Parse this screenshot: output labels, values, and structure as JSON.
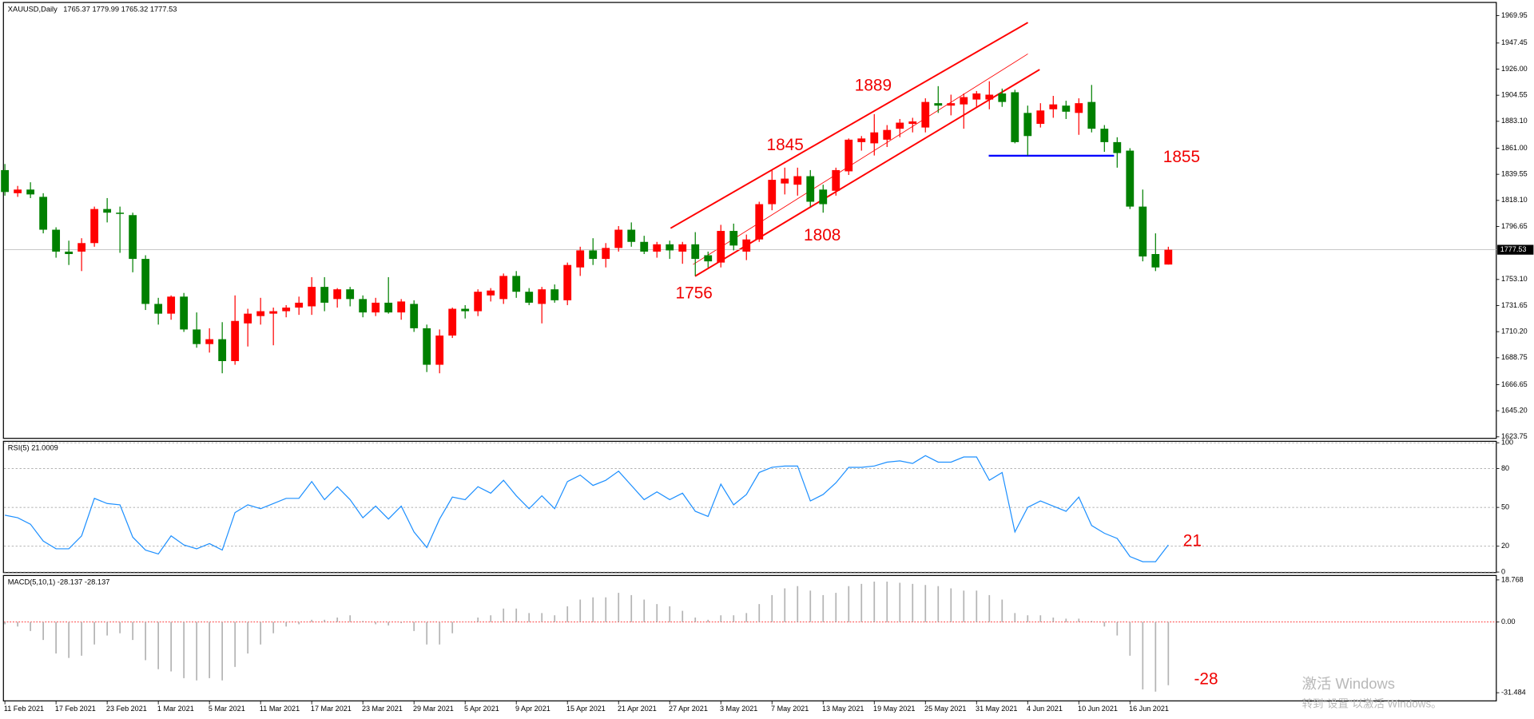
{
  "chart_data": [
    {
      "type": "candlestick",
      "title": "XAUUSD,Daily",
      "categories": [
        "11 Feb 2021",
        null,
        null,
        null,
        "17 Feb 2021",
        null,
        null,
        null,
        "23 Feb 2021",
        null,
        null,
        null,
        "1 Mar 2021",
        null,
        null,
        null,
        "5 Mar 2021",
        null,
        null,
        null,
        "11 Mar 2021",
        null,
        null,
        null,
        "17 Mar 2021",
        null,
        null,
        null,
        "23 Mar 2021",
        null,
        null,
        null,
        "29 Mar 2021",
        null,
        null,
        null,
        "5 Apr 2021",
        null,
        null,
        null,
        "9 Apr 2021",
        null,
        null,
        null,
        "15 Apr 2021",
        null,
        null,
        null,
        "21 Apr 2021",
        null,
        null,
        null,
        "27 Apr 2021",
        null,
        null,
        null,
        "3 May 2021",
        null,
        null,
        null,
        "7 May 2021",
        null,
        null,
        null,
        "13 May 2021",
        null,
        null,
        null,
        "19 May 2021",
        null,
        null,
        null,
        "25 May 2021",
        null,
        null,
        null,
        "31 May 2021",
        null,
        null,
        null,
        "4 Jun 2021",
        null,
        null,
        null,
        "10 Jun 2021",
        null,
        null,
        null,
        "16 Jun 2021",
        null,
        null,
        null
      ],
      "open": [
        1843,
        1824,
        1827,
        1821,
        1794,
        1776,
        1776,
        1783,
        1811,
        1808,
        1806,
        1770,
        1733,
        1725,
        1739,
        1712,
        1700,
        1704,
        1686,
        1717,
        1723,
        1725,
        1727,
        1730,
        1731,
        1747,
        1737,
        1745,
        1737,
        1726,
        1734,
        1726,
        1733,
        1713,
        1683,
        1707,
        1729,
        1727,
        1740,
        1737,
        1756,
        1743,
        1733,
        1745,
        1736,
        1763,
        1777,
        1770,
        1779,
        1794,
        1784,
        1776,
        1782,
        1776,
        1782,
        1773,
        1767,
        1793,
        1776,
        1786,
        1815,
        1832,
        1831,
        1838,
        1827,
        1826,
        1842,
        1866,
        1865,
        1868,
        1877,
        1881,
        1878,
        1898,
        1896,
        1897,
        1901,
        1901,
        1906,
        1907,
        1890,
        1881,
        1893,
        1896,
        1890,
        1899,
        1877,
        1866,
        1859,
        1813,
        1774,
        1765.37
      ],
      "high": [
        1848,
        1830,
        1833,
        1824,
        1796,
        1785,
        1787,
        1813,
        1820,
        1813,
        1808,
        1773,
        1738,
        1740,
        1742,
        1726,
        1713,
        1718,
        1740,
        1729,
        1738,
        1730,
        1732,
        1739,
        1755,
        1755,
        1746,
        1747,
        1740,
        1738,
        1755,
        1737,
        1736,
        1716,
        1712,
        1730,
        1732,
        1745,
        1746,
        1758,
        1760,
        1746,
        1747,
        1749,
        1767,
        1780,
        1787,
        1783,
        1797,
        1800,
        1789,
        1784,
        1785,
        1784,
        1792,
        1776,
        1798,
        1799,
        1790,
        1817,
        1843,
        1845,
        1845,
        1843,
        1831,
        1845,
        1869,
        1871,
        1889,
        1880,
        1885,
        1886,
        1902,
        1912,
        1905,
        1906,
        1908,
        1916,
        1910,
        1909,
        1896,
        1898,
        1904,
        1900,
        1902,
        1913,
        1880,
        1870,
        1861,
        1827,
        1791,
        1779.99
      ],
      "low": [
        1822,
        1821,
        1820,
        1791,
        1771,
        1765,
        1760,
        1780,
        1800,
        1775,
        1759,
        1728,
        1716,
        1720,
        1710,
        1697,
        1693,
        1676,
        1683,
        1698,
        1716,
        1699,
        1722,
        1724,
        1724,
        1727,
        1730,
        1731,
        1722,
        1723,
        1725,
        1720,
        1710,
        1677,
        1676,
        1705,
        1721,
        1723,
        1735,
        1733,
        1738,
        1732,
        1717,
        1734,
        1732,
        1756,
        1765,
        1763,
        1776,
        1780,
        1774,
        1771,
        1770,
        1766,
        1756,
        1763,
        1763,
        1777,
        1769,
        1784,
        1810,
        1823,
        1822,
        1813,
        1808,
        1822,
        1839,
        1859,
        1855,
        1862,
        1870,
        1874,
        1874,
        1890,
        1888,
        1877,
        1895,
        1893,
        1895,
        1865,
        1855,
        1878,
        1886,
        1885,
        1872,
        1874,
        1858,
        1845,
        1811,
        1768,
        1760,
        1765.32
      ],
      "close": [
        1825,
        1827,
        1823,
        1794,
        1776,
        1774,
        1783,
        1811,
        1808,
        1807,
        1770,
        1733,
        1725,
        1739,
        1712,
        1700,
        1704,
        1686,
        1719,
        1725,
        1727,
        1727,
        1730,
        1734,
        1747,
        1734,
        1745,
        1737,
        1726,
        1734,
        1726,
        1735,
        1713,
        1683,
        1707,
        1729,
        1727,
        1743,
        1744,
        1756,
        1743,
        1734,
        1745,
        1736,
        1765,
        1777,
        1770,
        1779,
        1794,
        1784,
        1776,
        1782,
        1777,
        1782,
        1770,
        1768,
        1793,
        1781,
        1786,
        1815,
        1835,
        1836,
        1838,
        1817,
        1815,
        1843,
        1868,
        1869,
        1874,
        1876,
        1882,
        1883,
        1899,
        1896,
        1898,
        1903,
        1906,
        1905,
        1899,
        1866,
        1871,
        1892,
        1897,
        1891,
        1898,
        1877,
        1866,
        1857,
        1813,
        1772,
        1763,
        1777.53
      ],
      "up_color": "#ff0000",
      "down_color": "#008000",
      "ylim": [
        1622.9,
        1980.4
      ],
      "yticks": [
        1969.95,
        1947.45,
        {
          "value": 1926,
          "label": "1926.00"
        },
        1904.55,
        {
          "value": 1883.1,
          "label": "1883.10"
        },
        {
          "value": 1861,
          "label": "1861.00"
        },
        1839.55,
        {
          "value": 1818.1,
          "label": "1818.10"
        },
        1796.65,
        {
          "value": 1753.1,
          "label": "1753.10"
        },
        1731.65,
        {
          "value": 1710.2,
          "label": "1710.20"
        },
        1688.75,
        1666.65,
        {
          "value": 1645.2,
          "label": "1645.20"
        },
        1623.75
      ],
      "annotations": [
        "1756",
        "1845",
        "1889",
        "1808",
        "1855"
      ]
    },
    {
      "type": "line",
      "title": "RSI(5)",
      "values": [
        44,
        42,
        37,
        24,
        18,
        18,
        28,
        57,
        53,
        52,
        27,
        17,
        14,
        28,
        21,
        18,
        22,
        17,
        46,
        52,
        49,
        53,
        57,
        57,
        70,
        56,
        66,
        56,
        42,
        51,
        41,
        51,
        31,
        19,
        41,
        58,
        56,
        66,
        61,
        71,
        59,
        49,
        59,
        49,
        70,
        75,
        67,
        71,
        78,
        67,
        56,
        62,
        56,
        61,
        47,
        43,
        68,
        52,
        60,
        77,
        81,
        82,
        82,
        55,
        60,
        69,
        81,
        81,
        82,
        85,
        86,
        84,
        90,
        85,
        85,
        89,
        89,
        71,
        77,
        31,
        50,
        55,
        51,
        47,
        58,
        36,
        30,
        26,
        12,
        8,
        8,
        21.0009
      ],
      "color": "#1e90ff",
      "ylim": [
        0,
        101.5
      ],
      "yticks": [
        0,
        20,
        50,
        80,
        100
      ],
      "grid": true,
      "annotations": [
        "21"
      ]
    },
    {
      "type": "bar",
      "title": "MACD(5,10,1)",
      "values": [
        -1,
        -2,
        -4,
        -8,
        -14,
        -16,
        -15,
        -10,
        -6,
        -5,
        -8,
        -17,
        -21,
        -22,
        -25,
        -26,
        -25,
        -26,
        -20,
        -14,
        -10,
        -5,
        -2,
        -1,
        1,
        1,
        2,
        3,
        0.5,
        -1,
        -1.5,
        -0.5,
        -4,
        -10,
        -10,
        -5,
        0,
        2,
        3,
        6,
        6,
        4,
        4,
        3,
        7,
        10,
        11,
        11,
        13,
        12,
        10,
        8,
        7,
        5,
        2,
        1,
        3,
        3,
        4,
        8,
        12,
        15,
        16,
        14,
        12,
        13,
        16,
        17,
        18,
        18,
        17.5,
        17,
        16.5,
        16,
        15,
        14,
        14,
        12,
        10,
        4,
        3,
        3,
        2,
        1.5,
        1.5,
        0.5,
        -2,
        -6,
        -15,
        -30,
        -31,
        -28.137
      ],
      "color": "#b4b4b4",
      "ylim": [
        -34.9,
        20.95
      ],
      "yticks": [
        18.768,
        {
          "value": 0,
          "label": "0.00"
        },
        -31.484
      ],
      "annotations": [
        "-28"
      ]
    }
  ],
  "watermark": [
    "激活 Windows",
    "转到“设置”以激活 Windows。"
  ]
}
